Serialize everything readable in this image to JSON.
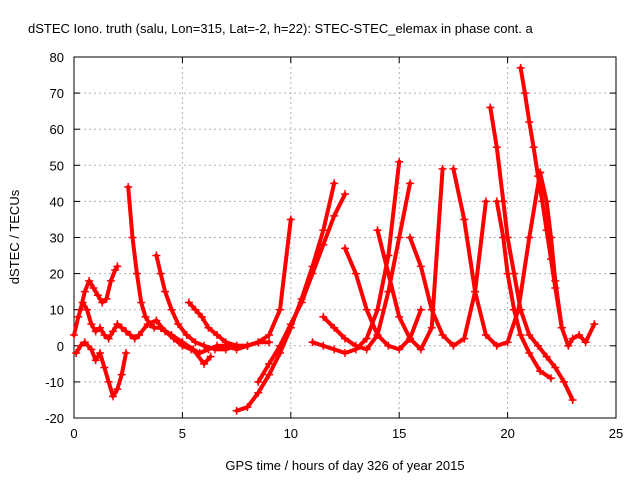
{
  "chart_data": {
    "type": "scatter",
    "title": "dSTEC Iono. truth (salu, Lon=315, Lat=-2, h=22): STEC-STEC_elemax in phase cont. a",
    "xlabel": "GPS time / hours of day 326 of year 2015",
    "ylabel": "dSTEC  / TECUs",
    "xlim": [
      0,
      25
    ],
    "ylim": [
      -20,
      80
    ],
    "xticks": [
      0,
      5,
      10,
      15,
      20,
      25
    ],
    "yticks": [
      -20,
      -10,
      0,
      10,
      20,
      30,
      40,
      50,
      60,
      70,
      80
    ],
    "grid": true,
    "marker": "+",
    "color": "#ff0000",
    "series": [
      {
        "x": [
          0.0,
          0.2,
          0.4,
          0.6,
          0.8,
          1.0,
          1.2,
          1.4,
          1.6,
          1.8,
          2.0,
          2.2,
          2.4,
          2.6,
          2.8,
          3.0
        ],
        "y": [
          3,
          8,
          12,
          10,
          6,
          4,
          5,
          3,
          2,
          4,
          6,
          5,
          4,
          3,
          2,
          3
        ]
      },
      {
        "x": [
          0.3,
          0.5,
          0.7,
          0.9,
          1.1,
          1.3,
          1.5,
          1.7,
          1.9,
          2.0
        ],
        "y": [
          10,
          15,
          18,
          16,
          14,
          12,
          13,
          18,
          21,
          22
        ]
      },
      {
        "x": [
          0.1,
          0.3,
          0.5,
          0.8,
          1.0,
          1.2,
          1.4,
          1.6,
          1.8,
          2.0,
          2.2,
          2.4
        ],
        "y": [
          -2,
          0,
          1,
          -1,
          -4,
          -2,
          -6,
          -10,
          -14,
          -12,
          -8,
          -2
        ]
      },
      {
        "x": [
          2.5,
          2.7,
          2.9,
          3.1,
          3.3,
          3.5,
          3.7,
          4.0,
          4.5,
          5.0,
          5.5,
          6.0,
          6.3
        ],
        "y": [
          44,
          30,
          20,
          12,
          8,
          6,
          5,
          5,
          3,
          1,
          -1,
          -5,
          -3
        ]
      },
      {
        "x": [
          3.0,
          3.4,
          3.8,
          4.2,
          4.6,
          5.0,
          5.4,
          5.8,
          6.2,
          6.6,
          7.0,
          7.5,
          8.0
        ],
        "y": [
          3,
          6,
          7,
          4,
          2,
          0,
          -1,
          -2,
          -1,
          0,
          0,
          -1,
          0
        ]
      },
      {
        "x": [
          3.8,
          4.0,
          4.2,
          4.5,
          4.8,
          5.2,
          5.6,
          6.0,
          6.5,
          7.0,
          7.5,
          8.0,
          8.5,
          9.0
        ],
        "y": [
          25,
          20,
          15,
          10,
          6,
          3,
          1,
          0,
          -1,
          -1,
          0,
          0,
          1,
          1
        ]
      },
      {
        "x": [
          5.3,
          5.6,
          5.9,
          6.2,
          6.6,
          7.0,
          7.5,
          8.0,
          8.5,
          9.0,
          9.5,
          10.0
        ],
        "y": [
          12,
          10,
          8,
          5,
          3,
          1,
          0,
          0,
          1,
          3,
          10,
          35
        ]
      },
      {
        "x": [
          7.5,
          8.0,
          8.5,
          9.0,
          9.5,
          10.0,
          10.5,
          11.0,
          11.5,
          12.0
        ],
        "y": [
          -18,
          -17,
          -13,
          -8,
          -2,
          5,
          13,
          22,
          32,
          45
        ]
      },
      {
        "x": [
          8.5,
          9.0,
          9.5,
          10.0,
          10.5,
          11.0,
          11.5,
          12.0,
          12.5
        ],
        "y": [
          -10,
          -5,
          0,
          6,
          12,
          20,
          28,
          36,
          42
        ]
      },
      {
        "x": [
          11.0,
          11.5,
          12.0,
          12.5,
          13.0,
          13.5,
          14.0,
          14.5,
          15.0
        ],
        "y": [
          1,
          0,
          -1,
          -2,
          -1,
          2,
          10,
          25,
          51
        ]
      },
      {
        "x": [
          11.5,
          12.0,
          12.5,
          13.0,
          13.5,
          14.0,
          14.5,
          15.0,
          15.5
        ],
        "y": [
          8,
          5,
          2,
          0,
          -1,
          3,
          15,
          30,
          45
        ]
      },
      {
        "x": [
          12.5,
          13.0,
          13.5,
          14.0,
          14.5,
          15.0,
          15.5,
          16.0
        ],
        "y": [
          27,
          20,
          10,
          3,
          0,
          -1,
          2,
          10
        ]
      },
      {
        "x": [
          14.0,
          14.5,
          15.0,
          15.5,
          16.0,
          16.5,
          17.0
        ],
        "y": [
          32,
          20,
          8,
          2,
          -1,
          5,
          49
        ]
      },
      {
        "x": [
          15.5,
          16.0,
          16.5,
          17.0,
          17.5,
          18.0,
          18.5,
          19.0
        ],
        "y": [
          30,
          22,
          10,
          3,
          0,
          2,
          15,
          40
        ]
      },
      {
        "x": [
          17.5,
          18.0,
          18.5,
          19.0,
          19.5,
          20.0,
          20.5,
          21.0,
          21.5
        ],
        "y": [
          49,
          35,
          15,
          3,
          0,
          1,
          10,
          30,
          48
        ]
      },
      {
        "x": [
          19.2,
          19.5,
          19.8,
          20.0,
          20.3,
          20.6,
          21.0,
          21.4,
          21.8,
          22.2,
          22.6,
          23.0
        ],
        "y": [
          66,
          55,
          40,
          30,
          20,
          10,
          3,
          0,
          -3,
          -6,
          -10,
          -15
        ]
      },
      {
        "x": [
          19.5,
          19.8,
          20.0,
          20.3,
          20.6,
          21.0,
          21.5,
          22.0
        ],
        "y": [
          40,
          30,
          20,
          10,
          3,
          -2,
          -7,
          -9
        ]
      },
      {
        "x": [
          20.6,
          20.8,
          21.0,
          21.2,
          21.4,
          21.6,
          21.8,
          22.0,
          22.2,
          22.5
        ],
        "y": [
          77,
          70,
          62,
          55,
          47,
          40,
          32,
          24,
          16,
          5
        ]
      },
      {
        "x": [
          21.5,
          21.8,
          22.0,
          22.2,
          22.5,
          22.8,
          23.0,
          23.3,
          23.6,
          24.0
        ],
        "y": [
          48,
          40,
          30,
          18,
          5,
          0,
          2,
          3,
          1,
          6
        ]
      }
    ]
  }
}
